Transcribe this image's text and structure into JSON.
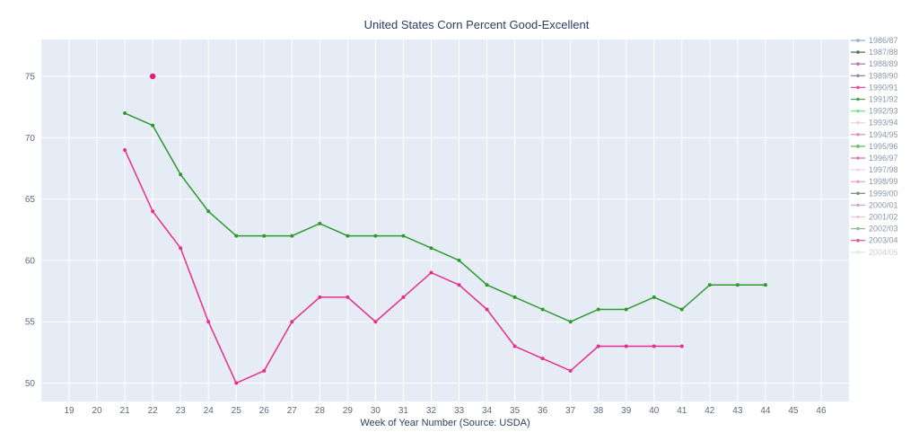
{
  "chart_data": {
    "type": "line",
    "title": "United States Corn Percent Good-Excellent",
    "xlabel": "Week of Year Number     (Source: USDA)",
    "ylabel": "",
    "xlim": [
      18,
      47
    ],
    "ylim": [
      48.5,
      78
    ],
    "x_ticks": [
      19,
      20,
      21,
      22,
      23,
      24,
      25,
      26,
      27,
      28,
      29,
      30,
      31,
      32,
      33,
      34,
      35,
      36,
      37,
      38,
      39,
      40,
      41,
      42,
      43,
      44,
      45,
      46
    ],
    "y_ticks": [
      50,
      55,
      60,
      65,
      70,
      75
    ],
    "grid": true,
    "legend_position": "right",
    "legend": [
      {
        "name": "1986/87",
        "color": "#8fb0d9"
      },
      {
        "name": "1987/88",
        "color": "#4d7a4d"
      },
      {
        "name": "1988/89",
        "color": "#b07ab0"
      },
      {
        "name": "1989/90",
        "color": "#8a8f9a"
      },
      {
        "name": "1990/91",
        "color": "#e0559a"
      },
      {
        "name": "1991/92",
        "color": "#5a9a5a"
      },
      {
        "name": "1992/93",
        "color": "#7de08f"
      },
      {
        "name": "1993/94",
        "color": "#f2d2e2"
      },
      {
        "name": "1994/95",
        "color": "#e68fb8"
      },
      {
        "name": "1995/96",
        "color": "#66bb66"
      },
      {
        "name": "1996/97",
        "color": "#d977b0"
      },
      {
        "name": "1997/98",
        "color": "#f5d5e5"
      },
      {
        "name": "1998/99",
        "color": "#e6a8c8"
      },
      {
        "name": "1999/00",
        "color": "#7f8f7f"
      },
      {
        "name": "2000/01",
        "color": "#d0a8c0"
      },
      {
        "name": "2001/02",
        "color": "#e8c8d8"
      },
      {
        "name": "2002/03",
        "color": "#9ab89a"
      },
      {
        "name": "2003/04",
        "color": "#e05a95"
      },
      {
        "name": "2004/05",
        "color": "#a8e0c0"
      }
    ],
    "series": [
      {
        "color": "#e6197a",
        "x": [
          22
        ],
        "values": [
          75
        ]
      },
      {
        "color": "#2e9a2e",
        "x": [
          21,
          22,
          23,
          24,
          25,
          26,
          27,
          28,
          29,
          30,
          31,
          32,
          33,
          34,
          35,
          36,
          37,
          38,
          39,
          40,
          41,
          42,
          43,
          44
        ],
        "values": [
          72,
          71,
          67,
          64,
          62,
          62,
          62,
          63,
          62,
          62,
          62,
          61,
          60,
          58,
          57,
          56,
          55,
          56,
          56,
          57,
          56,
          58,
          58,
          58
        ]
      },
      {
        "color": "#ea2c8c",
        "x": [
          21,
          22,
          23,
          24,
          25,
          26,
          27,
          28,
          29,
          30,
          31,
          32,
          33,
          34,
          35,
          36,
          37,
          38,
          39,
          40,
          41
        ],
        "values": [
          69,
          64,
          61,
          55,
          50,
          51,
          55,
          57,
          57,
          55,
          57,
          59,
          58,
          56,
          53,
          52,
          51,
          53,
          53,
          53,
          53
        ]
      }
    ]
  }
}
